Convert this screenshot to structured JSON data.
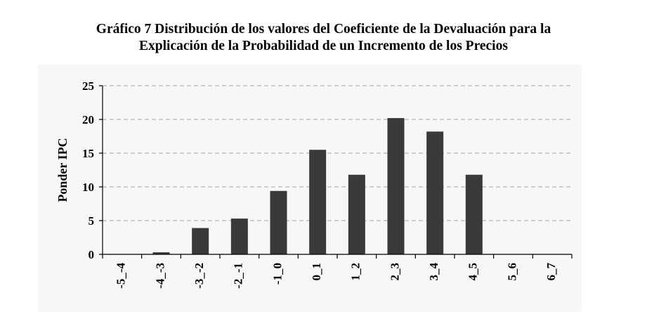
{
  "title_lines": [
    "Gráfico 7 Distribución de los valores del Coeficiente de la Devaluación para la",
    "Explicación de la Probabilidad de un Incremento de los Precios"
  ],
  "chart_data": {
    "type": "bar",
    "title": "Gráfico 7 Distribución de los valores del Coeficiente de la Devaluación para la Explicación de la Probabilidad de un Incremento de los Precios",
    "xlabel": "",
    "ylabel": "Ponder IPC",
    "ylim": [
      0,
      25
    ],
    "yticks": [
      0,
      5,
      10,
      15,
      20,
      25
    ],
    "grid": "horizontal-dashed",
    "categories": [
      "-5_-4",
      "-4_-3",
      "-3_-2",
      "-2_-1",
      "-1_0",
      "0_1",
      "1_2",
      "2_3",
      "3_4",
      "4_5",
      "5_6",
      "6_7"
    ],
    "values": [
      0,
      0.3,
      3.9,
      5.3,
      9.4,
      15.5,
      11.8,
      20.2,
      18.2,
      11.8,
      0,
      0
    ],
    "colors": {
      "bar": "#3a3a3c",
      "grid": "#a6a6a6",
      "axis": "#000000",
      "panel": "#f7f7f7"
    }
  }
}
